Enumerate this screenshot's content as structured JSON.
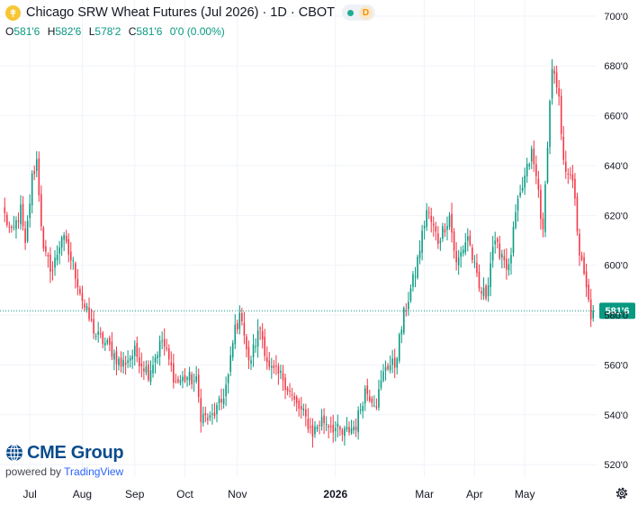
{
  "header": {
    "title": "Chicago SRW Wheat Futures (Jul 2026) · 1D · CBOT",
    "market_status": "open",
    "badge_letter": "D"
  },
  "ohlc": {
    "open_label": "O",
    "open": "581'6",
    "high_label": "H",
    "high": "582'6",
    "low_label": "L",
    "low": "578'2",
    "close_label": "C",
    "close": "581'6",
    "change": "0'0 (0.00%)"
  },
  "brand": {
    "logo_text": "CME Group",
    "powered_by": "powered by",
    "platform": "TradingView"
  },
  "icons": {
    "symbol": "wheat-icon",
    "cme": "cme-globe-icon",
    "settings": "gear-icon"
  },
  "colors": {
    "up": "#089981",
    "down": "#f23645",
    "last_price": "#089981",
    "grid": "#f0f3fa",
    "axis_text": "#131722"
  },
  "chart_data": {
    "type": "candlestick",
    "ylim": [
      515,
      705
    ],
    "y_ticks": [
      {
        "v": 520,
        "label": "520'0"
      },
      {
        "v": 540,
        "label": "540'0"
      },
      {
        "v": 560,
        "label": "560'0"
      },
      {
        "v": 580,
        "label": "580'0"
      },
      {
        "v": 600,
        "label": "600'0"
      },
      {
        "v": 620,
        "label": "620'0"
      },
      {
        "v": 640,
        "label": "640'0"
      },
      {
        "v": 660,
        "label": "660'0"
      },
      {
        "v": 680,
        "label": "680'0"
      },
      {
        "v": 700,
        "label": "700'0"
      }
    ],
    "x_ticks": [
      {
        "i": 11,
        "label": "Jul"
      },
      {
        "i": 34,
        "label": "Aug"
      },
      {
        "i": 57,
        "label": "Sep"
      },
      {
        "i": 79,
        "label": "Oct"
      },
      {
        "i": 102,
        "label": "Nov"
      },
      {
        "i": 145,
        "label": "2026",
        "bold": true
      },
      {
        "i": 184,
        "label": "Mar"
      },
      {
        "i": 206,
        "label": "Apr"
      },
      {
        "i": 228,
        "label": "May"
      }
    ],
    "x_count": 260,
    "last_price": {
      "value": 581.75,
      "label": "581'6"
    },
    "grid": true,
    "anchors": [
      [
        0,
        620
      ],
      [
        3,
        612
      ],
      [
        7,
        622
      ],
      [
        9,
        607
      ],
      [
        12,
        635
      ],
      [
        14,
        642
      ],
      [
        17,
        605
      ],
      [
        21,
        598
      ],
      [
        25,
        612
      ],
      [
        30,
        600
      ],
      [
        35,
        583
      ],
      [
        40,
        572
      ],
      [
        46,
        567
      ],
      [
        51,
        560
      ],
      [
        57,
        565
      ],
      [
        63,
        557
      ],
      [
        69,
        570
      ],
      [
        75,
        553
      ],
      [
        80,
        555
      ],
      [
        84,
        553
      ],
      [
        86,
        540
      ],
      [
        90,
        538
      ],
      [
        95,
        545
      ],
      [
        98,
        555
      ],
      [
        101,
        575
      ],
      [
        104,
        580
      ],
      [
        107,
        560
      ],
      [
        112,
        575
      ],
      [
        116,
        558
      ],
      [
        122,
        555
      ],
      [
        127,
        545
      ],
      [
        131,
        540
      ],
      [
        135,
        533
      ],
      [
        139,
        538
      ],
      [
        143,
        536
      ],
      [
        148,
        532
      ],
      [
        154,
        536
      ],
      [
        158,
        550
      ],
      [
        163,
        545
      ],
      [
        167,
        560
      ],
      [
        171,
        560
      ],
      [
        175,
        580
      ],
      [
        180,
        597
      ],
      [
        185,
        622
      ],
      [
        190,
        610
      ],
      [
        195,
        620
      ],
      [
        198,
        600
      ],
      [
        203,
        612
      ],
      [
        208,
        590
      ],
      [
        211,
        588
      ],
      [
        214,
        608
      ],
      [
        218,
        605
      ],
      [
        221,
        598
      ],
      [
        224,
        620
      ],
      [
        228,
        635
      ],
      [
        231,
        645
      ],
      [
        234,
        630
      ],
      [
        236,
        612
      ],
      [
        238,
        650
      ],
      [
        240,
        680
      ],
      [
        243,
        665
      ],
      [
        245,
        640
      ],
      [
        248,
        638
      ],
      [
        250,
        625
      ],
      [
        252,
        605
      ],
      [
        255,
        590
      ],
      [
        257,
        580
      ],
      [
        258,
        581.75
      ]
    ]
  }
}
